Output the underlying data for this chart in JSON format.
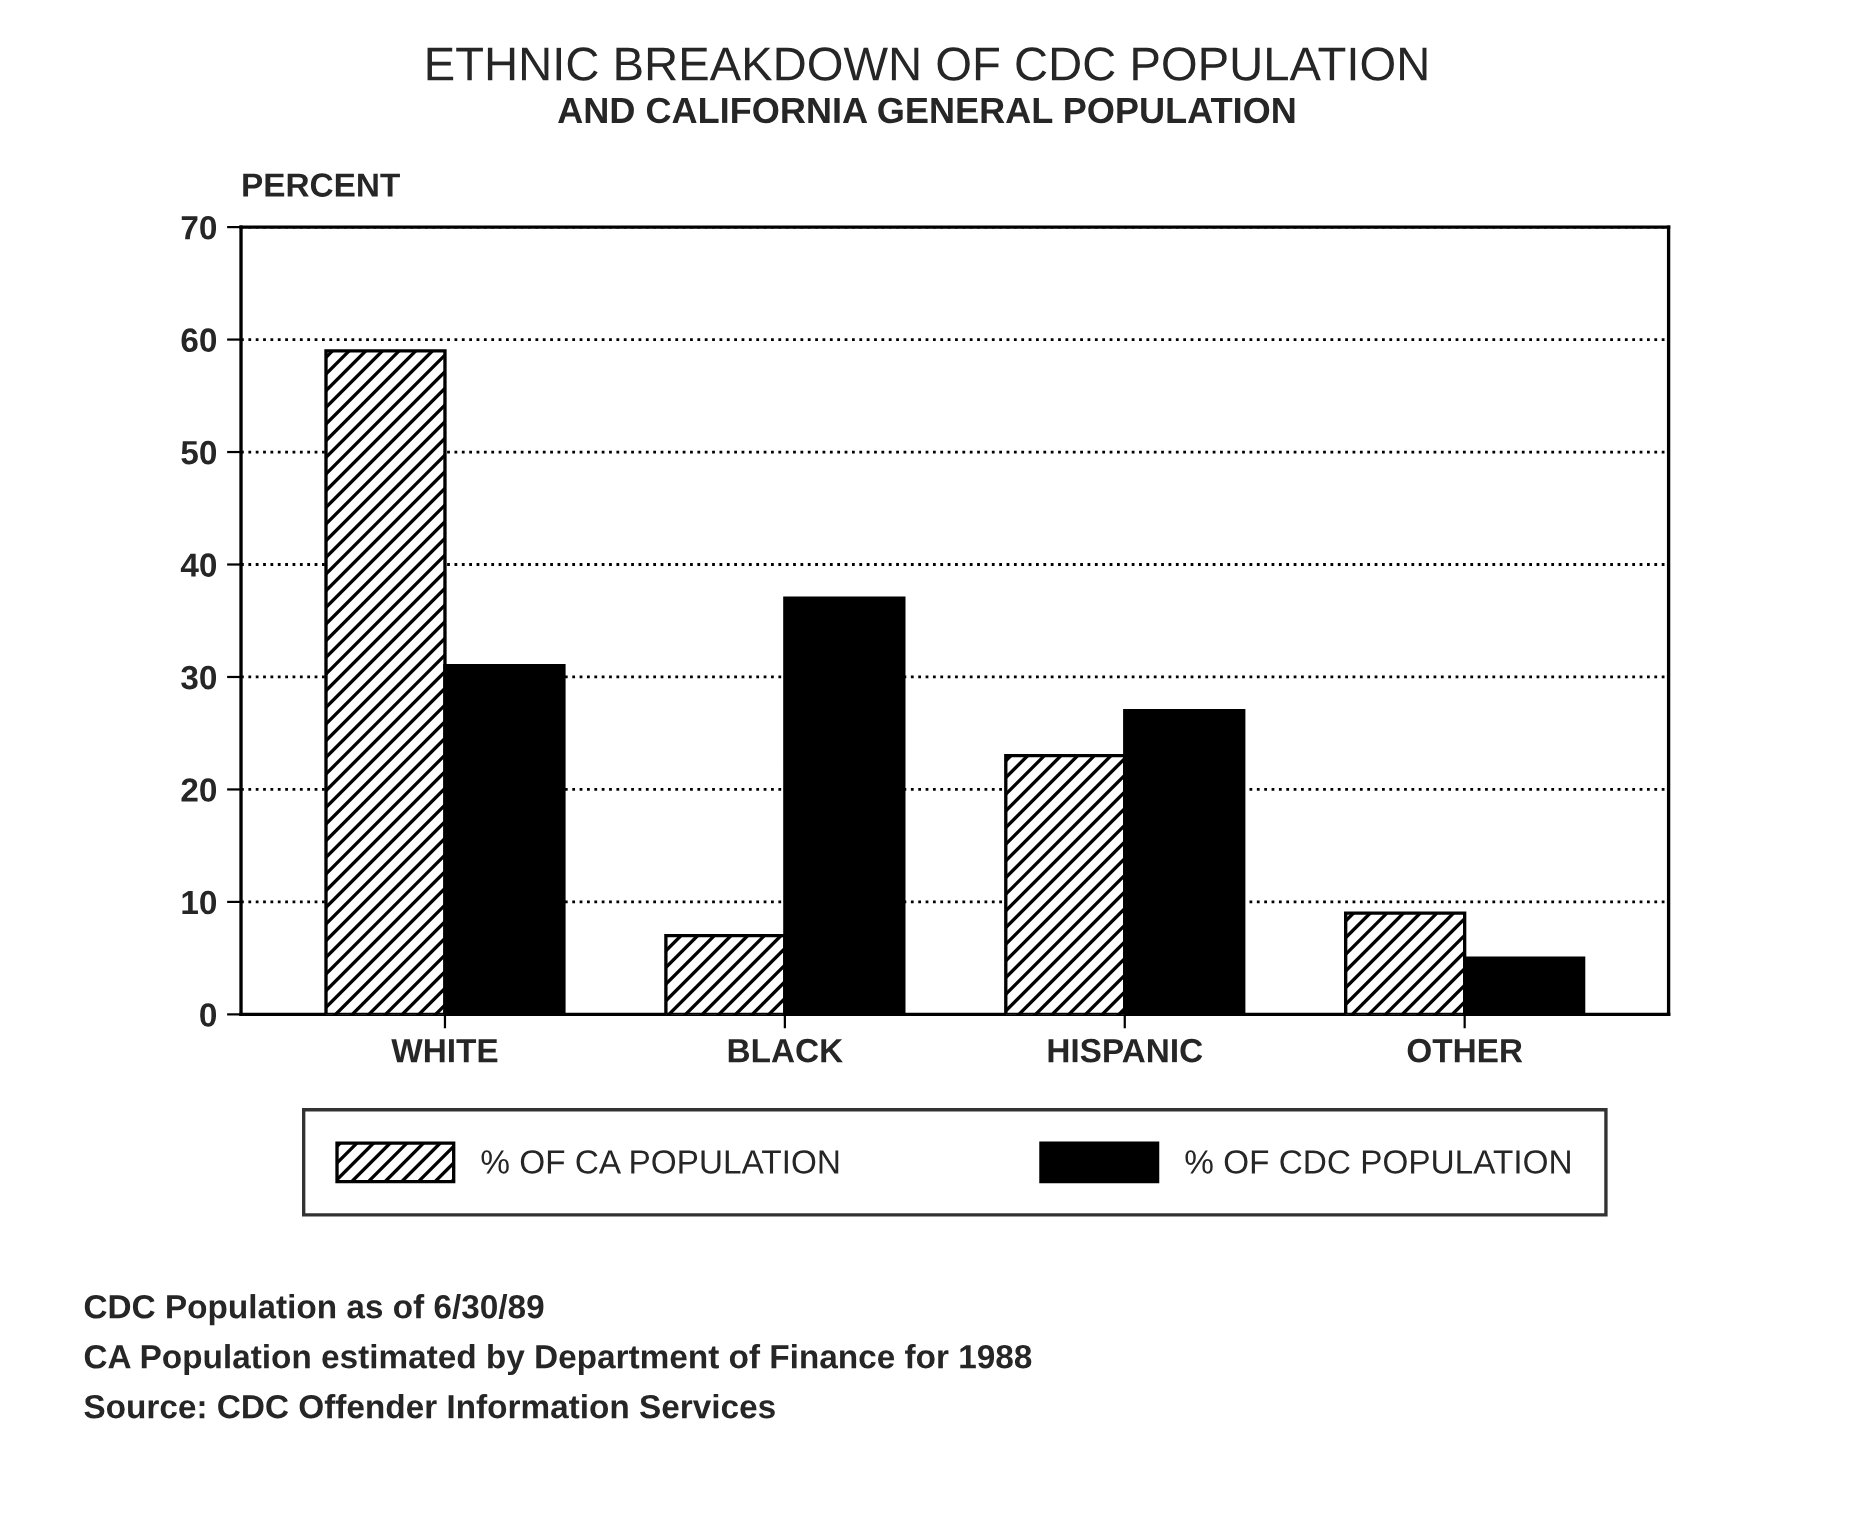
{
  "chart_data": {
    "type": "bar",
    "title": "ETHNIC BREAKDOWN OF CDC POPULATION",
    "subtitle": "AND CALIFORNIA GENERAL POPULATION",
    "ylabel": "PERCENT",
    "categories": [
      "WHITE",
      "BLACK",
      "HISPANIC",
      "OTHER"
    ],
    "series": [
      {
        "name": "% OF CA POPULATION",
        "color": "#000000",
        "values": [
          59,
          7,
          23,
          9
        ]
      },
      {
        "name": "% OF CDC POPULATION",
        "color": "#000000",
        "values": [
          31,
          37,
          27,
          5
        ]
      }
    ],
    "ylim": [
      0,
      70
    ],
    "yticks": [
      0,
      10,
      20,
      30,
      40,
      50,
      60,
      70
    ],
    "grid": "y",
    "legend": "bottom",
    "annotations": [
      "CDC Population as of 6/30/89",
      "CA Population estimated by Department of Finance for 1988",
      "Source: CDC Offender Information Services"
    ]
  }
}
